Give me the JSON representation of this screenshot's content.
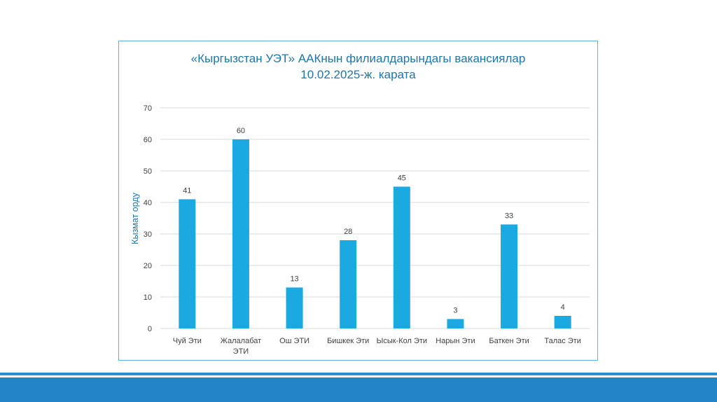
{
  "chart_data": {
    "type": "bar",
    "title_lines": [
      "«Кыргызстан УЭТ» ААКнын филиалдарындагы вакансиялар",
      "10.02.2025-ж. карата"
    ],
    "ylabel": "Кызмат орду",
    "xlabel": "",
    "ylim": [
      0,
      70
    ],
    "yticks": [
      0,
      10,
      20,
      30,
      40,
      50,
      60,
      70
    ],
    "grid": true,
    "categories": [
      [
        "Чуй Эти"
      ],
      [
        "Жалалабат",
        "ЭТИ"
      ],
      [
        "Ош ЭТИ"
      ],
      [
        "Бишкек Эти"
      ],
      [
        "Ысык-Кол Эти"
      ],
      [
        "Нарын Эти"
      ],
      [
        "Баткен Эти"
      ],
      [
        "Талас Эти"
      ]
    ],
    "values": [
      41,
      60,
      13,
      28,
      45,
      3,
      33,
      4
    ],
    "colors": {
      "bar": "#1ba9e1",
      "title": "#1f74a8",
      "axis_label": "#1f74a8",
      "grid": "#d9d9d9",
      "text": "#404040"
    }
  }
}
